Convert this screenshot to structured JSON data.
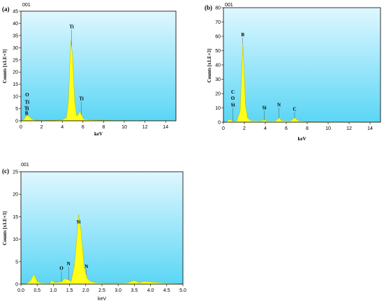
{
  "chart_data": [
    {
      "type": "area",
      "panel": "(a)",
      "tag": "001",
      "xlabel": "keV",
      "ylabel": "Counts [x1.E+3]",
      "xlim": [
        0,
        15
      ],
      "ylim": [
        0,
        45
      ],
      "xticks": [
        0,
        2,
        4,
        6,
        8,
        10,
        12,
        14
      ],
      "yticks": [
        0,
        5,
        10,
        15,
        20,
        25,
        30,
        35,
        40,
        45
      ],
      "series": [
        {
          "values": [
            [
              0,
              0
            ],
            [
              0.3,
              0.6
            ],
            [
              0.45,
              1.5
            ],
            [
              0.6,
              2.2
            ],
            [
              0.8,
              1.8
            ],
            [
              1.0,
              0.8
            ],
            [
              1.3,
              0.3
            ],
            [
              2,
              0.1
            ],
            [
              3,
              0.2
            ],
            [
              4,
              0.4
            ],
            [
              4.4,
              1.2
            ],
            [
              4.6,
              8
            ],
            [
              4.75,
              26
            ],
            [
              4.85,
              33
            ],
            [
              5.0,
              26
            ],
            [
              5.2,
              8
            ],
            [
              5.4,
              2
            ],
            [
              5.55,
              2.5
            ],
            [
              5.7,
              4
            ],
            [
              5.85,
              2.5
            ],
            [
              6.1,
              0.6
            ],
            [
              7,
              0.3
            ],
            [
              8,
              0.2
            ],
            [
              9,
              0.1
            ],
            [
              10,
              0.1
            ],
            [
              12,
              0.05
            ],
            [
              15,
              0
            ]
          ]
        }
      ],
      "peak_labels": [
        {
          "text": "O",
          "x": 0.6,
          "y": 10
        },
        {
          "text": "Ti",
          "x": 0.6,
          "y": 7
        },
        {
          "text": "Ti",
          "x": 0.55,
          "y": 4.5
        },
        {
          "text": "B",
          "x": 0.55,
          "y": 2.5
        },
        {
          "text": "Ti",
          "x": 4.9,
          "y": 38
        },
        {
          "text": "Ti",
          "x": 5.85,
          "y": 8.5
        }
      ]
    },
    {
      "type": "area",
      "panel": "(b)",
      "tag": "001",
      "xlabel": "keV",
      "ylabel": "Counts [x1.E+3]",
      "xlim": [
        0,
        15
      ],
      "ylim": [
        0,
        80
      ],
      "xticks": [
        0,
        2,
        4,
        6,
        8,
        10,
        12,
        14
      ],
      "yticks": [
        0,
        10,
        20,
        30,
        40,
        50,
        60,
        70,
        80
      ],
      "series": [
        {
          "values": [
            [
              0,
              0
            ],
            [
              0.3,
              0.5
            ],
            [
              0.6,
              2
            ],
            [
              0.8,
              1
            ],
            [
              1.0,
              0.5
            ],
            [
              1.3,
              1
            ],
            [
              1.6,
              8
            ],
            [
              1.75,
              35
            ],
            [
              1.85,
              55
            ],
            [
              1.95,
              40
            ],
            [
              2.1,
              12
            ],
            [
              2.3,
              3
            ],
            [
              2.6,
              1
            ],
            [
              3.5,
              0.8
            ],
            [
              3.9,
              1.5
            ],
            [
              4.2,
              0.8
            ],
            [
              5.0,
              0.8
            ],
            [
              5.3,
              3
            ],
            [
              5.6,
              1
            ],
            [
              6.4,
              0.8
            ],
            [
              6.8,
              3
            ],
            [
              7.2,
              0.8
            ],
            [
              8,
              0.4
            ],
            [
              10,
              0.2
            ],
            [
              12,
              0.1
            ],
            [
              15,
              0
            ]
          ]
        }
      ],
      "peak_labels": [
        {
          "text": "C",
          "x": 0.9,
          "y": 20
        },
        {
          "text": "O",
          "x": 0.9,
          "y": 15.5
        },
        {
          "text": "Si",
          "x": 0.9,
          "y": 11
        },
        {
          "text": "B",
          "x": 1.85,
          "y": 60
        },
        {
          "text": "Si",
          "x": 3.9,
          "y": 9
        },
        {
          "text": "N",
          "x": 5.3,
          "y": 11
        },
        {
          "text": "C",
          "x": 6.8,
          "y": 8
        }
      ]
    },
    {
      "type": "area",
      "panel": "(c)",
      "tag": "001",
      "xlabel": "keV",
      "ylabel": "Counts [x1.E+3]",
      "xlim": [
        0,
        5
      ],
      "ylim": [
        0,
        25
      ],
      "xticks": [
        "0.0",
        "0.5",
        "1.0",
        "1.5",
        "2.0",
        "2.5",
        "3.0",
        "3.5",
        "4.0",
        "4.5",
        "5.0"
      ],
      "yticks": [
        0,
        5,
        10,
        15,
        20,
        25
      ],
      "series": [
        {
          "values": [
            [
              0,
              0
            ],
            [
              0.2,
              0.2
            ],
            [
              0.3,
              0.8
            ],
            [
              0.4,
              2.2
            ],
            [
              0.5,
              0.6
            ],
            [
              0.6,
              0.3
            ],
            [
              0.9,
              0.2
            ],
            [
              0.95,
              0.8
            ],
            [
              1.05,
              0.3
            ],
            [
              1.25,
              0.5
            ],
            [
              1.35,
              1.2
            ],
            [
              1.45,
              1.0
            ],
            [
              1.55,
              0.6
            ],
            [
              1.65,
              4
            ],
            [
              1.72,
              10
            ],
            [
              1.78,
              15.5
            ],
            [
              1.85,
              12
            ],
            [
              1.95,
              4
            ],
            [
              2.05,
              1.2
            ],
            [
              2.15,
              0.6
            ],
            [
              2.3,
              0.3
            ],
            [
              2.6,
              0.2
            ],
            [
              3.0,
              0.2
            ],
            [
              3.3,
              0.3
            ],
            [
              3.5,
              0.8
            ],
            [
              3.65,
              0.3
            ],
            [
              3.8,
              0.6
            ],
            [
              3.95,
              0.5
            ],
            [
              4.1,
              0.4
            ],
            [
              4.5,
              0.2
            ],
            [
              5.0,
              0.1
            ]
          ]
        }
      ],
      "peak_labels": [
        {
          "text": "O",
          "x": 1.25,
          "y": 3.2
        },
        {
          "text": "N",
          "x": 1.47,
          "y": 4.2
        },
        {
          "text": "Si",
          "x": 1.78,
          "y": 13.5
        },
        {
          "text": "N",
          "x": 2.02,
          "y": 3.6
        }
      ]
    }
  ],
  "colors": {
    "bg_top": "#dff7ff",
    "bg_bottom": "#5bd6f5",
    "fill": "#ffff1a",
    "stroke": "#b8b800"
  }
}
